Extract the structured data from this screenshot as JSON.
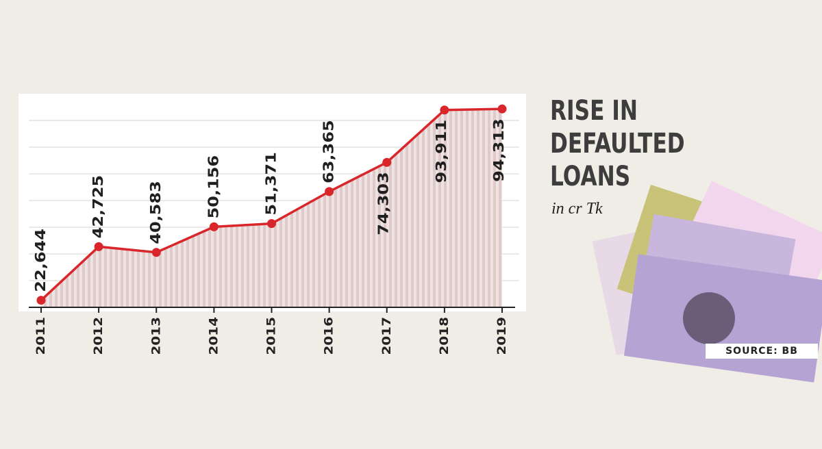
{
  "chart_data": {
    "type": "line",
    "title": "RISE IN DEFAULTED LOANS",
    "subtitle": "in cr Tk",
    "source": "SOURCE: BB",
    "categories": [
      "2011",
      "2012",
      "2013",
      "2014",
      "2015",
      "2016",
      "2017",
      "2018",
      "2019"
    ],
    "values": [
      22644,
      42725,
      40583,
      50156,
      51371,
      63365,
      74303,
      93911,
      94313
    ],
    "value_labels": [
      "22,644",
      "42,725",
      "40,583",
      "50,156",
      "51,371",
      "63,365",
      "74,303",
      "93,911",
      "94,313"
    ],
    "color": "#d8262b",
    "ylim": [
      20000,
      100000
    ],
    "yticks": [
      30000,
      40000,
      50000,
      60000,
      70000,
      80000,
      90000
    ],
    "grid": true
  }
}
